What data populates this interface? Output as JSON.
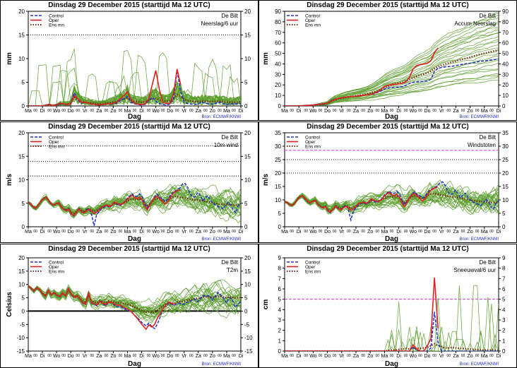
{
  "common": {
    "header_title": "Dinsdag  29 December  2015  (starttijd  Ma 12 UTC)",
    "station": "De Bilt",
    "xlabel": "Dag",
    "source": "Bron: ECMWF/KNMI",
    "legend": [
      "Control",
      "Oper",
      "Ens mn"
    ],
    "day_labels": [
      "Ma",
      "Di",
      "Wo",
      "Do",
      "Vr",
      "Za",
      "Zo",
      "Ma",
      "Di",
      "Wo",
      "Do",
      "Vr",
      "Za",
      "Zo",
      "Ma",
      "Di"
    ],
    "colors": {
      "members": "#5a9e2c",
      "control": "#2030d0",
      "oper": "#e02020",
      "ensmean": "#7a2a10",
      "threshold": "#dd33dd"
    }
  },
  "chart_data": [
    {
      "type": "line",
      "id": "neerslag",
      "title": "Neerslag/6 uur",
      "ylabel": "mm",
      "ylim": [
        0,
        20
      ],
      "yticks": [
        0,
        5,
        10,
        15,
        20
      ],
      "ref_lines": [
        {
          "y": 15,
          "style": "dotted-black"
        }
      ],
      "members_note": "50 ensemble members, 6-hourly precipitation (mm)",
      "control": [
        0,
        0,
        0,
        0,
        0,
        0.2,
        0.3,
        0,
        0.2,
        0.5,
        0.4,
        0.3,
        0.5,
        2.8,
        1.2,
        0.6,
        0.8,
        0.6,
        0.4,
        0.3,
        0.2,
        0.3,
        0.4,
        0.4,
        0.5,
        0.6,
        1.2,
        1.5,
        2.0,
        0.8,
        0.5,
        0.3,
        0.2,
        0.4,
        1.2,
        1.8,
        1.0,
        0.5,
        0.3,
        0.2,
        0.4,
        1.5,
        7.5,
        3.0,
        0.8,
        0.5,
        0.4,
        0.3,
        0.5,
        0.8,
        0.6,
        0.5,
        0.4,
        0.6,
        0.8,
        0.5,
        0.3,
        0.5,
        0.4,
        0.4,
        0.5
      ],
      "oper": [
        0,
        0,
        0,
        0,
        0,
        0.2,
        0.4,
        0,
        0.3,
        0.6,
        0.4,
        0.3,
        0.4,
        2.2,
        1.5,
        0.7,
        0.8,
        0.6,
        0.4,
        0.3,
        0.2,
        0.3,
        0.4,
        0.4,
        0.6,
        0.8,
        1.5,
        2.2,
        3.0,
        1.2,
        0.6,
        0.4,
        0.3,
        0.5,
        1.5,
        4.5,
        7.5,
        3.5,
        0.8,
        0.5,
        0.6,
        2.5,
        7.8,
        4.5
      ],
      "ensmean": [
        0,
        0,
        0,
        0,
        0,
        0.1,
        0.2,
        0.1,
        0.2,
        0.4,
        0.4,
        0.4,
        0.6,
        1.8,
        1.4,
        0.9,
        0.8,
        0.7,
        0.6,
        0.5,
        0.5,
        0.5,
        0.6,
        0.7,
        0.8,
        1.0,
        1.3,
        1.5,
        1.6,
        1.3,
        1.0,
        0.9,
        0.8,
        0.9,
        1.2,
        1.5,
        1.6,
        1.3,
        1.1,
        1.0,
        1.1,
        1.6,
        2.4,
        2.0,
        1.4,
        1.1,
        1.0,
        0.9,
        0.9,
        1.0,
        1.0,
        0.9,
        0.9,
        1.0,
        1.0,
        0.9,
        0.8,
        0.8,
        0.8,
        0.8,
        0.9
      ]
    },
    {
      "type": "line",
      "id": "accum",
      "title": "Accum Neerslag",
      "ylabel": "mm",
      "ylim": [
        0,
        90
      ],
      "yticks": [
        0,
        10,
        20,
        30,
        40,
        50,
        60,
        70,
        80,
        90
      ],
      "ref_lines": [],
      "members_note": "50 ensemble members, accumulated precipitation (mm)",
      "control": [
        0,
        0,
        0,
        0,
        0,
        0.2,
        0.5,
        0.5,
        0.7,
        1.2,
        1.6,
        1.9,
        2.4,
        5.2,
        6.4,
        7.0,
        7.8,
        8.4,
        8.8,
        9.1,
        9.3,
        9.6,
        10.0,
        10.4,
        10.9,
        11.5,
        12.7,
        14.2,
        16.2,
        17.0,
        17.5,
        17.8,
        18.0,
        18.4,
        19.6,
        21.4,
        22.4,
        22.9,
        23.2,
        23.4,
        23.8,
        25.3,
        32.8,
        35.8,
        36.6,
        37.1,
        37.5,
        37.8,
        38.3,
        39.1,
        39.7,
        40.2,
        40.6,
        41.2,
        42.0,
        42.5,
        42.8,
        43.3,
        43.7,
        44.1,
        44.6
      ],
      "oper": [
        0,
        0,
        0,
        0,
        0,
        0.2,
        0.6,
        0.6,
        0.9,
        1.5,
        1.9,
        2.2,
        2.6,
        4.8,
        6.3,
        7.0,
        7.8,
        8.4,
        8.8,
        9.1,
        9.3,
        9.6,
        10.0,
        10.4,
        11.0,
        11.8,
        13.3,
        15.5,
        18.5,
        19.7,
        20.3,
        20.7,
        21.0,
        21.5,
        23.0,
        27.5,
        35.0,
        38.5,
        39.3,
        39.8,
        40.4,
        42.9,
        50.7,
        55.2
      ],
      "ensmean": [
        0,
        0,
        0,
        0,
        0,
        0.1,
        0.3,
        0.4,
        0.6,
        1.0,
        1.4,
        1.8,
        2.4,
        4.2,
        5.6,
        6.5,
        7.3,
        8.0,
        8.6,
        9.1,
        9.6,
        10.1,
        10.7,
        11.4,
        12.2,
        13.2,
        14.5,
        16.0,
        17.6,
        18.9,
        19.9,
        20.8,
        21.6,
        22.5,
        23.7,
        25.2,
        26.8,
        28.1,
        29.2,
        30.2,
        31.3,
        32.9,
        35.3,
        37.3,
        38.7,
        39.8,
        40.8,
        41.7,
        42.6,
        43.6,
        44.6,
        45.5,
        46.4,
        47.4,
        48.4,
        49.3,
        50.1,
        50.9,
        51.7,
        52.5,
        53.4
      ]
    },
    {
      "type": "line",
      "id": "wind",
      "title": "10m wind",
      "ylabel": "m/s",
      "ylim": [
        0,
        20
      ],
      "yticks": [
        0,
        5,
        10,
        15,
        20
      ],
      "ref_lines": [
        {
          "y": 10.8,
          "style": "dotted-black"
        },
        {
          "y": 13.9,
          "style": "dotted-black"
        },
        {
          "y": 17.2,
          "style": "dotted-black"
        }
      ],
      "members_note": "50 ensemble members, 10m wind speed (m/s)",
      "control": [
        5.2,
        4.8,
        4.2,
        4.0,
        4.6,
        5.4,
        6.0,
        6.3,
        5.5,
        4.8,
        4.6,
        4.9,
        5.2,
        4.3,
        3.8,
        3.5,
        3.8,
        2.6,
        2.3,
        3.0,
        3.9,
        3.3,
        2.9,
        3.6,
        3.9,
        2.6,
        0.2,
        2.6,
        3.2,
        3.9,
        4.2,
        4.5,
        4.1,
        4.5,
        5.2,
        4.8,
        4.5,
        4.7,
        5.3,
        6.0,
        6.5,
        7.0,
        6.5,
        6.5,
        7.0,
        6.4,
        5.0,
        4.0,
        4.7,
        5.6,
        6.4,
        6.9,
        6.2,
        6.0,
        5.4,
        5.8,
        6.6,
        7.2,
        7.5,
        7.9,
        8.3,
        9.1,
        9.2,
        8.4,
        7.0,
        6.3,
        6.4,
        7.3,
        6.6,
        5.5,
        6.2,
        6.6,
        5.6,
        5.0,
        4.6,
        4.3,
        4.1,
        3.8,
        4.5,
        5.2,
        4.6,
        3.5,
        3.0,
        4.5,
        5.0
      ],
      "oper": [
        5.2,
        4.8,
        4.2,
        4.0,
        4.6,
        5.4,
        6.0,
        6.3,
        5.6,
        4.9,
        4.6,
        4.9,
        5.1,
        4.3,
        3.7,
        3.4,
        3.7,
        2.7,
        2.4,
        3.0,
        3.8,
        3.2,
        2.9,
        3.4,
        3.7,
        3.3,
        2.8,
        3.1,
        3.6,
        4.2,
        4.4,
        4.6,
        4.3,
        4.6,
        5.3,
        5.0,
        4.7,
        4.8,
        5.2,
        5.8,
        6.3,
        6.7,
        6.2,
        6.0,
        6.3,
        5.7,
        4.4,
        3.6,
        4.5,
        5.5,
        6.2,
        6.5,
        5.9,
        5.4,
        4.8,
        5.2,
        6.1,
        7.0,
        7.4,
        7.7,
        7.9
      ],
      "ensmean": [
        5.2,
        4.8,
        4.2,
        4.0,
        4.6,
        5.4,
        6.0,
        6.3,
        5.6,
        4.9,
        4.6,
        4.9,
        5.1,
        4.3,
        3.8,
        3.6,
        3.8,
        3.0,
        2.8,
        3.2,
        3.8,
        3.5,
        3.3,
        3.6,
        3.9,
        3.6,
        3.3,
        3.5,
        3.8,
        4.2,
        4.4,
        4.6,
        4.4,
        4.6,
        5.0,
        4.9,
        4.8,
        4.9,
        5.1,
        5.4,
        5.7,
        6.0,
        5.8,
        5.7,
        5.9,
        5.6,
        4.9,
        4.5,
        4.9,
        5.4,
        5.8,
        6.0,
        5.8,
        5.6,
        5.4,
        5.6,
        6.0,
        6.3,
        6.4,
        6.4,
        6.3,
        6.2,
        6.1,
        6.0,
        5.9,
        5.8,
        5.7,
        5.7,
        5.6,
        5.5,
        5.4,
        5.3,
        5.2,
        5.1,
        5.0,
        4.9,
        4.8,
        4.8,
        4.8,
        4.7,
        4.7,
        4.6,
        4.6,
        4.6,
        4.7
      ]
    },
    {
      "type": "line",
      "id": "windstoten",
      "title": "Windstoten",
      "ylabel": "m/s",
      "ylim": [
        0,
        35
      ],
      "yticks": [
        0,
        5,
        10,
        15,
        20,
        25,
        30,
        35
      ],
      "ref_lines": [
        {
          "y": 20,
          "style": "dotted-black"
        },
        {
          "y": 25,
          "style": "dotted-black"
        },
        {
          "y": 28.5,
          "style": "dashed-magenta"
        }
      ],
      "members_note": "50 ensemble members, wind gusts (m/s)",
      "control": [
        9.4,
        9.0,
        8.2,
        8.0,
        8.8,
        10.2,
        11.2,
        11.5,
        10.4,
        9.3,
        8.9,
        9.5,
        9.9,
        8.5,
        7.6,
        7.1,
        7.5,
        5.8,
        5.2,
        6.4,
        7.9,
        6.9,
        6.2,
        7.4,
        8.0,
        6.3,
        2.5,
        5.9,
        7.0,
        8.1,
        8.6,
        9.0,
        8.4,
        9.0,
        10.2,
        9.5,
        9.0,
        9.4,
        10.4,
        11.6,
        12.4,
        13.2,
        12.4,
        12.4,
        13.2,
        12.2,
        9.9,
        8.2,
        9.4,
        10.9,
        12.2,
        13.0,
        11.9,
        11.6,
        10.6,
        11.3,
        12.6,
        13.6,
        14.1,
        14.7,
        15.3,
        16.5,
        16.7,
        15.4,
        13.2,
        12.0,
        12.2,
        13.6,
        12.5,
        10.8,
        11.9,
        12.5,
        10.9,
        9.9,
        9.2,
        8.7,
        8.4,
        7.9,
        9.0,
        10.2,
        9.2,
        7.3,
        6.5,
        8.8,
        9.7
      ],
      "oper": [
        9.4,
        9.0,
        8.2,
        8.0,
        8.8,
        10.2,
        11.2,
        11.5,
        10.6,
        9.4,
        8.9,
        9.5,
        9.8,
        8.5,
        7.5,
        7.0,
        7.4,
        6.0,
        5.4,
        6.4,
        7.7,
        6.7,
        6.2,
        7.0,
        7.6,
        7.0,
        6.1,
        6.6,
        7.5,
        8.6,
        8.9,
        9.2,
        8.7,
        9.2,
        10.4,
        9.9,
        9.4,
        9.5,
        10.2,
        11.3,
        12.1,
        12.7,
        12.0,
        11.6,
        12.1,
        11.1,
        8.9,
        7.5,
        9.0,
        10.7,
        11.9,
        12.4,
        11.4,
        10.6,
        9.6,
        10.3,
        11.8,
        13.3,
        14.0,
        14.5,
        14.8
      ],
      "ensmean": [
        9.4,
        9.0,
        8.2,
        8.0,
        8.8,
        10.2,
        11.2,
        11.5,
        10.6,
        9.4,
        8.9,
        9.5,
        9.8,
        8.5,
        7.6,
        7.3,
        7.6,
        6.3,
        5.9,
        6.6,
        7.7,
        7.2,
        6.9,
        7.4,
        7.9,
        7.4,
        6.9,
        7.2,
        7.8,
        8.5,
        8.8,
        9.1,
        8.8,
        9.1,
        9.8,
        9.7,
        9.5,
        9.7,
        10.0,
        10.5,
        11.0,
        11.5,
        11.2,
        11.0,
        11.4,
        10.9,
        9.7,
        9.0,
        9.6,
        10.5,
        11.2,
        11.5,
        11.2,
        10.9,
        10.6,
        10.9,
        11.6,
        12.1,
        12.3,
        12.3,
        12.1,
        11.9,
        11.8,
        11.6,
        11.4,
        11.2,
        11.1,
        11.1,
        10.9,
        10.7,
        10.5,
        10.3,
        10.1,
        9.9,
        9.8,
        9.6,
        9.4,
        9.4,
        9.4,
        9.2,
        9.2,
        9.0,
        9.0,
        9.0,
        9.2
      ]
    },
    {
      "type": "line",
      "id": "t2m",
      "title": "T2m",
      "ylabel": "Celsius",
      "ylim": [
        -15,
        20
      ],
      "yticks": [
        -15,
        -10,
        -5,
        0,
        5,
        10,
        15,
        20
      ],
      "ref_lines": [
        {
          "y": 0,
          "style": "solid-black-thick"
        }
      ],
      "members_note": "50 ensemble members, 2m temperature (Celsius)",
      "control": [
        9.5,
        8.5,
        7.6,
        8.8,
        8.0,
        6.5,
        5.6,
        7.8,
        6.0,
        7.0,
        5.8,
        5.4,
        6.8,
        5.6,
        8.4,
        6.3,
        5.0,
        5.8,
        4.5,
        3.0,
        2.5,
        7.0,
        3.0,
        2.5,
        2.0,
        3.8,
        2.7,
        2.0,
        3.4,
        3.2,
        2.2,
        1.6,
        1.8,
        1.0,
        0.6,
        0.2,
        -0.5,
        -1.5,
        -2.5,
        -3.6,
        -4.8,
        -5.5,
        -4.5,
        -5.8,
        -6.6,
        -4.8,
        -2.0,
        1.2,
        2.0,
        3.0,
        2.5,
        2.2,
        3.0,
        2.8,
        2.5,
        3.2,
        3.5,
        4.0,
        4.5,
        3.5,
        5.0,
        5.8,
        5.5,
        6.0,
        4.0,
        5.5,
        7.0,
        6.0,
        5.0,
        3.0,
        5.0,
        4.5,
        1.5,
        2.5,
        3.5
      ],
      "oper": [
        9.5,
        8.5,
        7.6,
        8.8,
        8.0,
        6.5,
        5.6,
        7.8,
        6.1,
        7.0,
        5.9,
        5.5,
        6.8,
        5.7,
        8.4,
        6.3,
        5.1,
        5.8,
        4.5,
        3.1,
        2.6,
        6.8,
        3.2,
        2.8,
        2.3,
        3.6,
        2.9,
        2.5,
        3.4,
        3.3,
        2.6,
        2.2,
        2.3,
        1.6,
        1.0,
        0.5,
        -0.4,
        -1.6,
        -2.8,
        -4.2,
        -5.6,
        -6.8,
        -5.2,
        -6.0,
        -5.0,
        -2.5,
        -0.8,
        1.0,
        2.4,
        3.4,
        2.8,
        2.6
      ],
      "ensmean": [
        9.5,
        8.5,
        7.6,
        8.8,
        8.0,
        6.6,
        5.7,
        7.7,
        6.2,
        6.9,
        6.0,
        5.6,
        6.7,
        5.8,
        8.0,
        6.4,
        5.3,
        5.8,
        4.8,
        3.6,
        3.2,
        6.0,
        3.8,
        3.4,
        3.1,
        3.9,
        3.5,
        3.2,
        3.8,
        3.7,
        3.3,
        3.1,
        3.2,
        2.9,
        2.6,
        2.4,
        2.0,
        1.5,
        1.0,
        0.5,
        0.0,
        -0.4,
        -0.2,
        -0.6,
        -0.5,
        0.4,
        1.2,
        2.0,
        2.6,
        3.1,
        3.0,
        3.0,
        3.4,
        3.5,
        3.6,
        4.0,
        4.2,
        4.5,
        4.7,
        4.6,
        5.0,
        5.3,
        5.3,
        5.4,
        5.1,
        5.3,
        5.6,
        5.4,
        5.2,
        5.0,
        5.3,
        5.2,
        4.8,
        5.0,
        5.2
      ]
    },
    {
      "type": "line",
      "id": "sneeuwval",
      "title": "Sneeuwval/6 uur",
      "ylabel": "cm",
      "ylim": [
        0,
        9
      ],
      "yticks": [
        0,
        1,
        2,
        3,
        4,
        5,
        6,
        7,
        8,
        9
      ],
      "ref_lines": [
        {
          "y": 5,
          "style": "dashed-magenta"
        }
      ],
      "members_note": "50 ensemble members, snowfall per 6 hours (cm)",
      "control": [
        0,
        0,
        0,
        0,
        0,
        0,
        0,
        0,
        0,
        0,
        0,
        0,
        0,
        0,
        0,
        0,
        0,
        0,
        0,
        0,
        0,
        0,
        0,
        0,
        0,
        0,
        0,
        0,
        0,
        0,
        0,
        0,
        0,
        0,
        0,
        0,
        0.4,
        0.1,
        0,
        0,
        0,
        0.3,
        3.8,
        0.8,
        0,
        0,
        0,
        0,
        0,
        0,
        0,
        0,
        0,
        0,
        0,
        0,
        0,
        0,
        0,
        0,
        0
      ],
      "oper": [
        0,
        0,
        0,
        0,
        0,
        0,
        0,
        0,
        0,
        0,
        0,
        0,
        0,
        0,
        0,
        0,
        0,
        0,
        0,
        0,
        0,
        0,
        0,
        0,
        0,
        0,
        0,
        0,
        0,
        0,
        0,
        0,
        0,
        0,
        0,
        0,
        0.6,
        0.2,
        0,
        0,
        0.5,
        1.2,
        7.1,
        2.2
      ],
      "ensmean": [
        0,
        0,
        0,
        0,
        0,
        0,
        0,
        0,
        0,
        0,
        0,
        0,
        0,
        0,
        0,
        0,
        0,
        0,
        0,
        0,
        0,
        0,
        0,
        0,
        0,
        0,
        0,
        0,
        0,
        0.05,
        0.1,
        0.1,
        0.15,
        0.2,
        0.25,
        0.2,
        0.3,
        0.3,
        0.25,
        0.3,
        0.35,
        0.5,
        0.7,
        0.55,
        0.4,
        0.3,
        0.3,
        0.35,
        0.3,
        0.25,
        0.25,
        0.2,
        0.2,
        0.15,
        0.15,
        0.1,
        0.1,
        0.1,
        0.1,
        0.1,
        0.05
      ]
    }
  ]
}
